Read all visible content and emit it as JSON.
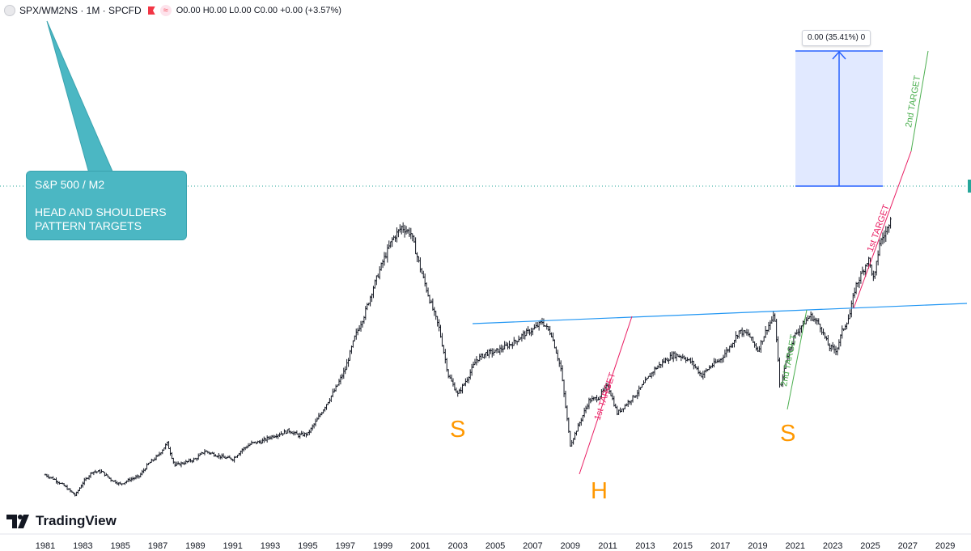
{
  "header": {
    "symbol": "SPX/WM2NS · 1M · SPCFD",
    "ohlc": "O0.00 H0.00 L0.00 C0.00 +0.00 (+3.57%)",
    "approx_icon": "≈"
  },
  "callout": {
    "line1": "S&P 500 / M2",
    "line2": "HEAD AND SHOULDERS",
    "line3": "PATTERN TARGETS"
  },
  "measure_label": "0.00 (35.41%) 0",
  "logo_text": "TradingView",
  "chart_data": {
    "type": "bar",
    "subtype": "ohlc",
    "x_tick_labels": [
      "1981",
      "1983",
      "1985",
      "1987",
      "1989",
      "1991",
      "1993",
      "1995",
      "1997",
      "1999",
      "2001",
      "2003",
      "2005",
      "2007",
      "2009",
      "2011",
      "2013",
      "2015",
      "2017",
      "2019",
      "2021",
      "2023",
      "2025",
      "2027",
      "2029"
    ],
    "xlim": [
      1980.3,
      2029.7
    ],
    "ylim": [
      0,
      100
    ],
    "keypoints": [
      [
        1981.0,
        8.5
      ],
      [
        1981.5,
        7
      ],
      [
        1982.0,
        5
      ],
      [
        1982.6,
        2
      ],
      [
        1983.0,
        6
      ],
      [
        1983.5,
        9.5
      ],
      [
        1984.0,
        9.5
      ],
      [
        1984.5,
        7
      ],
      [
        1985.0,
        5.5
      ],
      [
        1985.5,
        7
      ],
      [
        1986.0,
        8
      ],
      [
        1986.5,
        12
      ],
      [
        1987.0,
        14.5
      ],
      [
        1987.5,
        18.5
      ],
      [
        1987.9,
        11.5
      ],
      [
        1988.5,
        12.5
      ],
      [
        1989.0,
        13.5
      ],
      [
        1989.5,
        16
      ],
      [
        1990.0,
        15
      ],
      [
        1990.5,
        14
      ],
      [
        1991.0,
        13.5
      ],
      [
        1991.5,
        16.5
      ],
      [
        1992.0,
        18.5
      ],
      [
        1992.5,
        19
      ],
      [
        1993.0,
        20.5
      ],
      [
        1993.5,
        21.5
      ],
      [
        1994.0,
        22.5
      ],
      [
        1994.5,
        21
      ],
      [
        1995.0,
        21.5
      ],
      [
        1995.5,
        26
      ],
      [
        1996.0,
        31
      ],
      [
        1996.5,
        36
      ],
      [
        1997.0,
        42
      ],
      [
        1997.5,
        52
      ],
      [
        1998.0,
        59
      ],
      [
        1998.5,
        68
      ],
      [
        1999.0,
        76
      ],
      [
        1999.5,
        83
      ],
      [
        2000.0,
        87
      ],
      [
        2000.5,
        85
      ],
      [
        2001.0,
        74
      ],
      [
        2001.5,
        64
      ],
      [
        2002.0,
        55
      ],
      [
        2002.5,
        40
      ],
      [
        2003.0,
        34
      ],
      [
        2003.5,
        39
      ],
      [
        2004.0,
        45
      ],
      [
        2004.5,
        47
      ],
      [
        2005.0,
        47.5
      ],
      [
        2005.5,
        49
      ],
      [
        2006.0,
        50.5
      ],
      [
        2006.5,
        53
      ],
      [
        2007.0,
        54.5
      ],
      [
        2007.5,
        57
      ],
      [
        2008.0,
        53
      ],
      [
        2008.5,
        42
      ],
      [
        2009.0,
        18
      ],
      [
        2009.5,
        25
      ],
      [
        2010.0,
        32
      ],
      [
        2010.5,
        33
      ],
      [
        2011.0,
        37
      ],
      [
        2011.5,
        28
      ],
      [
        2012.0,
        31
      ],
      [
        2012.5,
        34
      ],
      [
        2013.0,
        38
      ],
      [
        2013.5,
        42
      ],
      [
        2014.0,
        44.5
      ],
      [
        2014.5,
        46.5
      ],
      [
        2015.0,
        46
      ],
      [
        2015.5,
        44
      ],
      [
        2016.0,
        40
      ],
      [
        2016.5,
        43
      ],
      [
        2017.0,
        45
      ],
      [
        2017.5,
        49
      ],
      [
        2018.0,
        54
      ],
      [
        2018.5,
        53
      ],
      [
        2019.0,
        48
      ],
      [
        2019.5,
        55
      ],
      [
        2019.9,
        59
      ],
      [
        2020.2,
        35
      ],
      [
        2020.5,
        45
      ],
      [
        2020.9,
        52
      ],
      [
        2021.3,
        55.5
      ],
      [
        2021.8,
        59
      ],
      [
        2022.3,
        56
      ],
      [
        2022.8,
        49
      ],
      [
        2023.2,
        48
      ],
      [
        2023.5,
        54
      ],
      [
        2023.9,
        59
      ],
      [
        2024.2,
        68
      ],
      [
        2024.6,
        73
      ],
      [
        2024.9,
        77
      ],
      [
        2025.2,
        70
      ],
      [
        2025.5,
        82
      ],
      [
        2025.9,
        86
      ],
      [
        2026.1,
        91
      ]
    ]
  }
}
